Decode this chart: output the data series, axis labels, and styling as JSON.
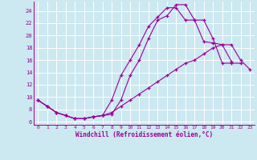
{
  "xlabel": "Windchill (Refroidissement éolien,°C)",
  "bg_color": "#cce8f0",
  "line_color": "#990099",
  "xticks": [
    0,
    1,
    2,
    3,
    4,
    5,
    6,
    7,
    8,
    9,
    10,
    11,
    12,
    13,
    14,
    15,
    16,
    17,
    18,
    19,
    20,
    21,
    22,
    23
  ],
  "yticks": [
    6,
    8,
    10,
    12,
    14,
    16,
    18,
    20,
    22,
    24
  ],
  "xlim": [
    -0.5,
    23.5
  ],
  "ylim": [
    5.5,
    25.5
  ],
  "series": [
    {
      "x": [
        0,
        1,
        2,
        3,
        4,
        5,
        6,
        7,
        8,
        9,
        10,
        11,
        12,
        13,
        14,
        15,
        16,
        17,
        18,
        19,
        20,
        21
      ],
      "y": [
        9.5,
        8.5,
        7.5,
        7.0,
        6.5,
        6.5,
        6.8,
        7.0,
        7.2,
        9.5,
        13.5,
        16.0,
        19.5,
        22.5,
        23.2,
        25.0,
        25.0,
        22.5,
        19.0,
        18.8,
        18.5,
        15.8
      ]
    },
    {
      "x": [
        0,
        1,
        2,
        3,
        4,
        5,
        6,
        7,
        8,
        9,
        10,
        11,
        12,
        13,
        14,
        15,
        16,
        17,
        18,
        19,
        20,
        21,
        22,
        23
      ],
      "y": [
        9.5,
        8.5,
        7.5,
        7.0,
        6.5,
        6.5,
        6.8,
        7.0,
        7.5,
        8.5,
        9.5,
        10.5,
        11.5,
        12.5,
        13.5,
        14.5,
        15.5,
        16.0,
        17.0,
        18.0,
        18.5,
        18.5,
        16.0,
        14.5
      ]
    },
    {
      "x": [
        0,
        1,
        2,
        3,
        4,
        5,
        6,
        7,
        8,
        9,
        10,
        11,
        12,
        13,
        14,
        15,
        16,
        17,
        18,
        19,
        20,
        21,
        22
      ],
      "y": [
        9.5,
        8.5,
        7.5,
        7.0,
        6.5,
        6.5,
        6.8,
        7.0,
        9.5,
        13.5,
        16.0,
        18.5,
        21.5,
        23.0,
        24.5,
        24.5,
        22.5,
        22.5,
        22.5,
        19.5,
        15.5,
        15.5,
        15.5
      ]
    }
  ]
}
